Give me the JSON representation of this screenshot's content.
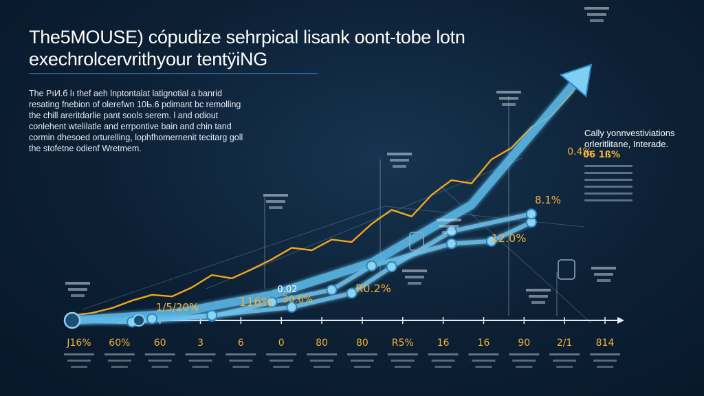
{
  "title": {
    "line1": "The5MOUSE) cópudize sehrpical lisank oont-tobe lotn",
    "line2": "exechrolcervrithyour tentÿiNG"
  },
  "intro": {
    "lines": [
      "The PıИ.б lı thef aeh lnptontalat latignotial a banrid",
      "resating fnebion of olerefwn 10Ь.6 pdimant bc remolling",
      "the chill areritdarlie pant sools serem. l and odiout",
      "conlehent wtelilatle and errpontive bain and chin tand",
      "cormin dhesoed orturelling, lophfhomernenit tecitarg goll",
      "the stofetne odienf Wretmem."
    ]
  },
  "side_panel": {
    "heading_line1": "Cally yonnvestiviations",
    "heading_line2": "orleritlitane, Interade.",
    "percent": "06 1ß%"
  },
  "colors": {
    "background": "#0c1f33",
    "axis": "#e8eef5",
    "orange_series": "#f2a81d",
    "blue_series": "#6fc2ea",
    "arrow": "#5bb8e6",
    "label_orange": "#f5b23a",
    "label_white": "#ffffff"
  },
  "chart_data": {
    "type": "line",
    "title": "",
    "xlabel": "",
    "ylabel": "",
    "grid": false,
    "legend": "none",
    "x_tick_labels": [
      "J16%",
      "60%",
      "60",
      "3",
      "6",
      "0",
      "80",
      "80",
      "R5%",
      "16",
      "16",
      "90",
      "2/1",
      "814"
    ],
    "point_labels": [
      "1/5/20%",
      "116%",
      "30.6%",
      "0.02",
      "R0.2%",
      "8.1%",
      "12.0%",
      "0.4%"
    ],
    "series": [
      {
        "x": [
          0,
          1,
          2,
          3,
          4,
          5,
          6,
          7,
          8,
          9,
          10,
          11,
          12,
          13,
          14,
          15,
          16,
          17,
          18,
          19,
          20,
          21,
          22,
          23,
          24,
          25,
          26
        ],
        "values": [
          6,
          9,
          15,
          24,
          31,
          29,
          40,
          55,
          51,
          62,
          74,
          88,
          85,
          98,
          95,
          117,
          134,
          126,
          152,
          170,
          166,
          195,
          209,
          234,
          248,
          275,
          310
        ]
      },
      {
        "x": [
          0,
          4,
          7,
          10,
          13,
          15,
          19,
          21,
          23
        ],
        "values": [
          0,
          2,
          5,
          22,
          37,
          66,
          93,
          96,
          119
        ]
      },
      {
        "x": [
          0,
          3,
          7,
          11,
          14,
          16,
          19,
          23
        ],
        "values": [
          0,
          -2,
          6,
          16,
          33,
          65,
          108,
          129
        ]
      },
      {
        "x": [
          0,
          5,
          10,
          15,
          20,
          26
        ],
        "values": [
          0,
          8,
          31,
          70,
          140,
          310
        ]
      }
    ]
  }
}
